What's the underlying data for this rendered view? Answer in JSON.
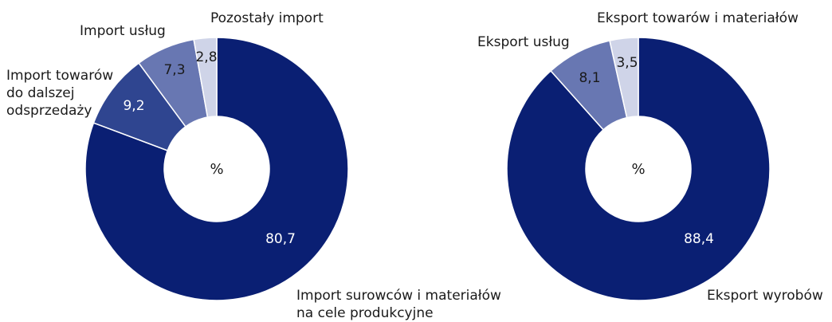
{
  "chart_data": [
    {
      "type": "pie",
      "donut": true,
      "center_label": "%",
      "slices": [
        {
          "label": [
            "Import surowców i materiałów",
            "na cele produkcyjne"
          ],
          "value": 80.7,
          "display": "80,7",
          "color": "#0a1f73",
          "text_color": "#ffffff"
        },
        {
          "label": [
            "Import towarów",
            "do dalszej",
            "odsprzedaży"
          ],
          "value": 9.2,
          "display": "9,2",
          "color": "#2f4590",
          "text_color": "#ffffff"
        },
        {
          "label": [
            "Import usług"
          ],
          "value": 7.3,
          "display": "7,3",
          "color": "#6877b2",
          "text_color": "#1a1a1a"
        },
        {
          "label": [
            "Pozostały import"
          ],
          "value": 2.8,
          "display": "2,8",
          "color": "#cfd4e8",
          "text_color": "#1a1a1a"
        }
      ]
    },
    {
      "type": "pie",
      "donut": true,
      "center_label": "%",
      "slices": [
        {
          "label": [
            "Eksport wyrobów"
          ],
          "value": 88.4,
          "display": "88,4",
          "color": "#0a1f73",
          "text_color": "#ffffff"
        },
        {
          "label": [
            "Eksport usług"
          ],
          "value": 8.1,
          "display": "8,1",
          "color": "#6877b2",
          "text_color": "#1a1a1a"
        },
        {
          "label": [
            "Eksport towarów i materiałów"
          ],
          "value": 3.5,
          "display": "3,5",
          "color": "#cfd4e8",
          "text_color": "#1a1a1a"
        }
      ]
    }
  ]
}
